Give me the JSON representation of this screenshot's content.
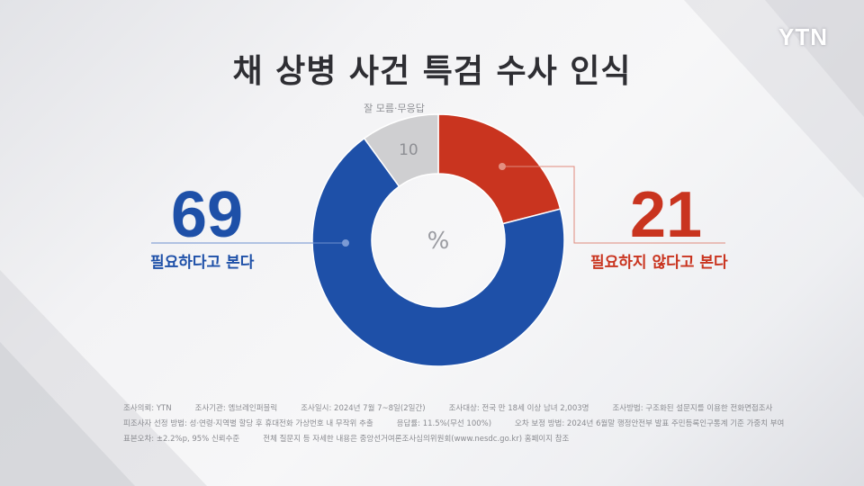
{
  "title": "채 상병 사건 특검 수사 인식",
  "logo": "YTN",
  "center_label": "%",
  "colors": {
    "need": "#1e50a8",
    "no_need": "#c9341f",
    "unknown": "#cfcfd1"
  },
  "chart_data": {
    "type": "pie",
    "style": "donut",
    "unit": "%",
    "slices": [
      {
        "label": "필요하지 않다고 본다",
        "value": 21,
        "color": "#c9341f"
      },
      {
        "label": "필요하다고 본다",
        "value": 69,
        "color": "#1e50a8"
      },
      {
        "label": "잘 모름·무응답",
        "value": 10,
        "color": "#cfcfd1"
      }
    ]
  },
  "callouts": {
    "left_value": "69",
    "left_label": "필요하다고 본다",
    "right_value": "21",
    "right_label": "필요하지 않다고 본다",
    "top_value": "10",
    "top_label": "잘 모름·무응답"
  },
  "footnote": {
    "line1": [
      "조사의뢰: YTN",
      "조사기관: 엠브레인퍼블릭",
      "조사일시: 2024년 7월 7~8일(2일간)",
      "조사대상: 전국 만 18세 이상 남녀 2,003명",
      "조사방법: 구조화된 설문지를 이용한 전화면접조사"
    ],
    "line2": [
      "피조사자 선정 방법: 성·연령·지역별 할당 후 휴대전화 가상번호 내 무작위 추출",
      "응답률: 11.5%(무선 100%)",
      "오차 보정 방법: 2024년 6월말 행정안전부 발표 주민등록인구통계 기준 가중치 부여"
    ],
    "line3": [
      "표본오차: ±2.2%p, 95% 신뢰수준",
      "전체 질문지 등 자세한 내용은 중앙선거여론조사심의위원회(www.nesdc.go.kr) 홈페이지 참조"
    ]
  }
}
